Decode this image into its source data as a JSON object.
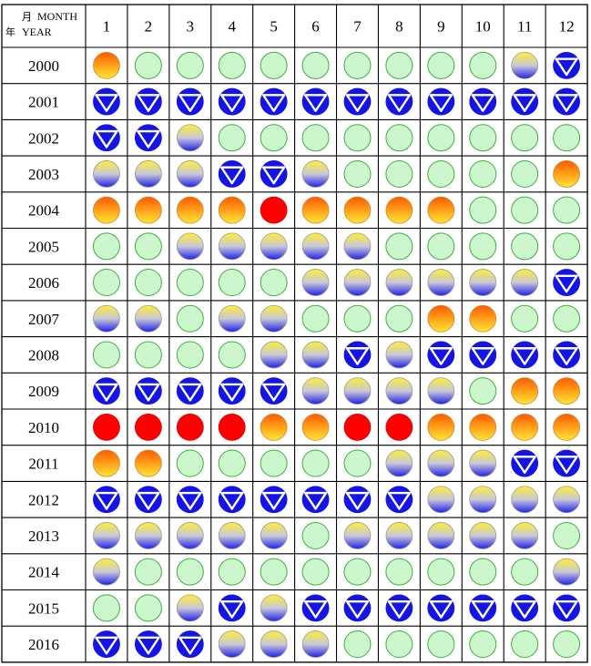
{
  "header": {
    "month_cjk": "月",
    "month_en": "MONTH",
    "year_cjk": "年",
    "year_en": "YEAR"
  },
  "chart_data": {
    "type": "table",
    "months": [
      "1",
      "2",
      "3",
      "4",
      "5",
      "6",
      "7",
      "8",
      "9",
      "10",
      "11",
      "12"
    ],
    "legend_codes": {
      "G": "light green circle",
      "Y": "yellow-blue gradient circle",
      "B": "blue circle with white inverted triangle",
      "O": "orange-yellow gradient circle",
      "R": "solid red circle"
    },
    "colors": {
      "green_fill": "#ccf7cc",
      "green_stroke": "#3fae3f",
      "blue": "#1414e6",
      "red": "#ff0000",
      "orange": "#ff6000",
      "yellow": "#ffee33",
      "grid": "#000000"
    },
    "rows": [
      {
        "year": "2000",
        "cells": [
          "O",
          "G",
          "G",
          "G",
          "G",
          "G",
          "G",
          "G",
          "G",
          "G",
          "Y",
          "B"
        ]
      },
      {
        "year": "2001",
        "cells": [
          "B",
          "B",
          "B",
          "B",
          "B",
          "B",
          "B",
          "B",
          "B",
          "B",
          "B",
          "B"
        ]
      },
      {
        "year": "2002",
        "cells": [
          "B",
          "B",
          "Y",
          "G",
          "G",
          "G",
          "G",
          "G",
          "G",
          "G",
          "G",
          "G"
        ]
      },
      {
        "year": "2003",
        "cells": [
          "Y",
          "Y",
          "Y",
          "B",
          "B",
          "Y",
          "G",
          "G",
          "G",
          "G",
          "G",
          "O"
        ]
      },
      {
        "year": "2004",
        "cells": [
          "O",
          "O",
          "O",
          "O",
          "R",
          "O",
          "O",
          "O",
          "O",
          "G",
          "G",
          "G"
        ]
      },
      {
        "year": "2005",
        "cells": [
          "G",
          "G",
          "Y",
          "Y",
          "Y",
          "Y",
          "Y",
          "G",
          "G",
          "G",
          "G",
          "G"
        ]
      },
      {
        "year": "2006",
        "cells": [
          "G",
          "G",
          "G",
          "G",
          "G",
          "Y",
          "Y",
          "Y",
          "Y",
          "Y",
          "Y",
          "B"
        ]
      },
      {
        "year": "2007",
        "cells": [
          "Y",
          "Y",
          "G",
          "Y",
          "Y",
          "G",
          "G",
          "G",
          "O",
          "O",
          "G",
          "G"
        ]
      },
      {
        "year": "2008",
        "cells": [
          "G",
          "G",
          "G",
          "G",
          "Y",
          "Y",
          "B",
          "Y",
          "B",
          "B",
          "B",
          "B"
        ]
      },
      {
        "year": "2009",
        "cells": [
          "B",
          "B",
          "B",
          "B",
          "B",
          "Y",
          "Y",
          "Y",
          "Y",
          "G",
          "O",
          "O"
        ]
      },
      {
        "year": "2010",
        "cells": [
          "R",
          "R",
          "R",
          "R",
          "O",
          "O",
          "R",
          "R",
          "O",
          "O",
          "O",
          "O"
        ]
      },
      {
        "year": "2011",
        "cells": [
          "O",
          "O",
          "G",
          "G",
          "G",
          "G",
          "G",
          "Y",
          "Y",
          "Y",
          "B",
          "B"
        ]
      },
      {
        "year": "2012",
        "cells": [
          "B",
          "B",
          "B",
          "B",
          "B",
          "B",
          "B",
          "B",
          "Y",
          "Y",
          "Y",
          "Y"
        ]
      },
      {
        "year": "2013",
        "cells": [
          "Y",
          "Y",
          "Y",
          "Y",
          "Y",
          "G",
          "Y",
          "Y",
          "Y",
          "Y",
          "Y",
          "G"
        ]
      },
      {
        "year": "2014",
        "cells": [
          "Y",
          "G",
          "G",
          "G",
          "G",
          "G",
          "G",
          "G",
          "G",
          "G",
          "G",
          "Y"
        ]
      },
      {
        "year": "2015",
        "cells": [
          "G",
          "G",
          "Y",
          "B",
          "Y",
          "B",
          "B",
          "B",
          "B",
          "B",
          "B",
          "B"
        ]
      },
      {
        "year": "2016",
        "cells": [
          "B",
          "B",
          "B",
          "Y",
          "Y",
          "Y",
          "G",
          "G",
          "G",
          "G",
          "G",
          "G"
        ]
      }
    ]
  }
}
